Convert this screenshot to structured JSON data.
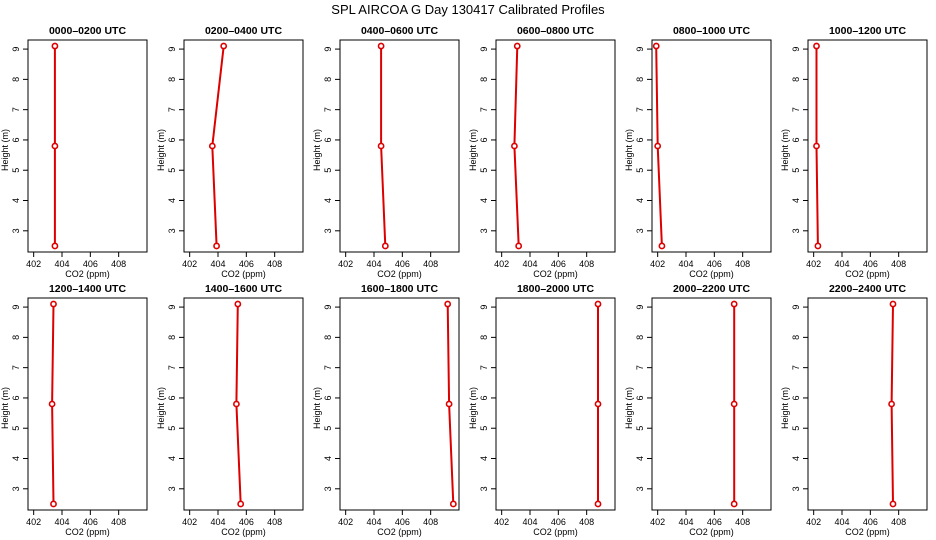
{
  "figure": {
    "title": "SPL AIRCOA G  Day 130417  Calibrated Profiles",
    "series_color": "#dd0000"
  },
  "chart_data": [
    {
      "type": "line",
      "title": "0000–0200 UTC",
      "xlabel": "CO2 (ppm)",
      "ylabel": "Height (m)",
      "xlim": [
        401.6,
        410.0
      ],
      "ylim": [
        2.3,
        9.3
      ],
      "xticks": [
        "402",
        "404",
        "406",
        "408"
      ],
      "yticks": [
        "3",
        "4",
        "5",
        "6",
        "7",
        "8",
        "9"
      ],
      "x": [
        403.5,
        403.5,
        403.5
      ],
      "y": [
        2.5,
        5.8,
        9.1
      ]
    },
    {
      "type": "line",
      "title": "0200–0400 UTC",
      "xlabel": "CO2 (ppm)",
      "ylabel": "Height (m)",
      "xlim": [
        401.6,
        410.0
      ],
      "ylim": [
        2.3,
        9.3
      ],
      "xticks": [
        "402",
        "404",
        "406",
        "408"
      ],
      "yticks": [
        "3",
        "4",
        "5",
        "6",
        "7",
        "8",
        "9"
      ],
      "x": [
        403.9,
        403.6,
        404.4
      ],
      "y": [
        2.5,
        5.8,
        9.1
      ]
    },
    {
      "type": "line",
      "title": "0400–0600 UTC",
      "xlabel": "CO2 (ppm)",
      "ylabel": "Height (m)",
      "xlim": [
        401.6,
        410.0
      ],
      "ylim": [
        2.3,
        9.3
      ],
      "xticks": [
        "402",
        "404",
        "406",
        "408"
      ],
      "yticks": [
        "3",
        "4",
        "5",
        "6",
        "7",
        "8",
        "9"
      ],
      "x": [
        404.8,
        404.5,
        404.5
      ],
      "y": [
        2.5,
        5.8,
        9.1
      ]
    },
    {
      "type": "line",
      "title": "0600–0800 UTC",
      "xlabel": "CO2 (ppm)",
      "ylabel": "Height (m)",
      "xlim": [
        401.6,
        410.0
      ],
      "ylim": [
        2.3,
        9.3
      ],
      "xticks": [
        "402",
        "404",
        "406",
        "408"
      ],
      "yticks": [
        "3",
        "4",
        "5",
        "6",
        "7",
        "8",
        "9"
      ],
      "x": [
        403.2,
        402.9,
        403.1
      ],
      "y": [
        2.5,
        5.8,
        9.1
      ]
    },
    {
      "type": "line",
      "title": "0800–1000 UTC",
      "xlabel": "CO2 (ppm)",
      "ylabel": "Height (m)",
      "xlim": [
        401.6,
        410.0
      ],
      "ylim": [
        2.3,
        9.3
      ],
      "xticks": [
        "402",
        "404",
        "406",
        "408"
      ],
      "yticks": [
        "3",
        "4",
        "5",
        "6",
        "7",
        "8",
        "9"
      ],
      "x": [
        402.3,
        402.0,
        401.9
      ],
      "y": [
        2.5,
        5.8,
        9.1
      ]
    },
    {
      "type": "line",
      "title": "1000–1200 UTC",
      "xlabel": "CO2 (ppm)",
      "ylabel": "Height (m)",
      "xlim": [
        401.6,
        410.0
      ],
      "ylim": [
        2.3,
        9.3
      ],
      "xticks": [
        "402",
        "404",
        "406",
        "408"
      ],
      "yticks": [
        "3",
        "4",
        "5",
        "6",
        "7",
        "8",
        "9"
      ],
      "x": [
        402.3,
        402.2,
        402.2
      ],
      "y": [
        2.5,
        5.8,
        9.1
      ]
    },
    {
      "type": "line",
      "title": "1200–1400 UTC",
      "xlabel": "CO2 (ppm)",
      "ylabel": "Height (m)",
      "xlim": [
        401.6,
        410.0
      ],
      "ylim": [
        2.3,
        9.3
      ],
      "xticks": [
        "402",
        "404",
        "406",
        "408"
      ],
      "yticks": [
        "3",
        "4",
        "5",
        "6",
        "7",
        "8",
        "9"
      ],
      "x": [
        403.4,
        403.3,
        403.4
      ],
      "y": [
        2.5,
        5.8,
        9.1
      ]
    },
    {
      "type": "line",
      "title": "1400–1600 UTC",
      "xlabel": "CO2 (ppm)",
      "ylabel": "Height (m)",
      "xlim": [
        401.6,
        410.0
      ],
      "ylim": [
        2.3,
        9.3
      ],
      "xticks": [
        "402",
        "404",
        "406",
        "408"
      ],
      "yticks": [
        "3",
        "4",
        "5",
        "6",
        "7",
        "8",
        "9"
      ],
      "x": [
        405.6,
        405.3,
        405.4
      ],
      "y": [
        2.5,
        5.8,
        9.1
      ]
    },
    {
      "type": "line",
      "title": "1600–1800 UTC",
      "xlabel": "CO2 (ppm)",
      "ylabel": "Height (m)",
      "xlim": [
        401.6,
        410.0
      ],
      "ylim": [
        2.3,
        9.3
      ],
      "xticks": [
        "402",
        "404",
        "406",
        "408"
      ],
      "yticks": [
        "3",
        "4",
        "5",
        "6",
        "7",
        "8",
        "9"
      ],
      "x": [
        409.6,
        409.3,
        409.2
      ],
      "y": [
        2.5,
        5.8,
        9.1
      ]
    },
    {
      "type": "line",
      "title": "1800–2000 UTC",
      "xlabel": "CO2 (ppm)",
      "ylabel": "Height (m)",
      "xlim": [
        401.6,
        410.0
      ],
      "ylim": [
        2.3,
        9.3
      ],
      "xticks": [
        "402",
        "404",
        "406",
        "408"
      ],
      "yticks": [
        "3",
        "4",
        "5",
        "6",
        "7",
        "8",
        "9"
      ],
      "x": [
        408.8,
        408.8,
        408.8
      ],
      "y": [
        2.5,
        5.8,
        9.1
      ]
    },
    {
      "type": "line",
      "title": "2000–2200 UTC",
      "xlabel": "CO2 (ppm)",
      "ylabel": "Height (m)",
      "xlim": [
        401.6,
        410.0
      ],
      "ylim": [
        2.3,
        9.3
      ],
      "xticks": [
        "402",
        "404",
        "406",
        "408"
      ],
      "yticks": [
        "3",
        "4",
        "5",
        "6",
        "7",
        "8",
        "9"
      ],
      "x": [
        407.4,
        407.4,
        407.4
      ],
      "y": [
        2.5,
        5.8,
        9.1
      ]
    },
    {
      "type": "line",
      "title": "2200–2400 UTC",
      "xlabel": "CO2 (ppm)",
      "ylabel": "Height (m)",
      "xlim": [
        401.6,
        410.0
      ],
      "ylim": [
        2.3,
        9.3
      ],
      "xticks": [
        "402",
        "404",
        "406",
        "408"
      ],
      "yticks": [
        "3",
        "4",
        "5",
        "6",
        "7",
        "8",
        "9"
      ],
      "x": [
        407.6,
        407.5,
        407.6
      ],
      "y": [
        2.5,
        5.8,
        9.1
      ]
    }
  ]
}
